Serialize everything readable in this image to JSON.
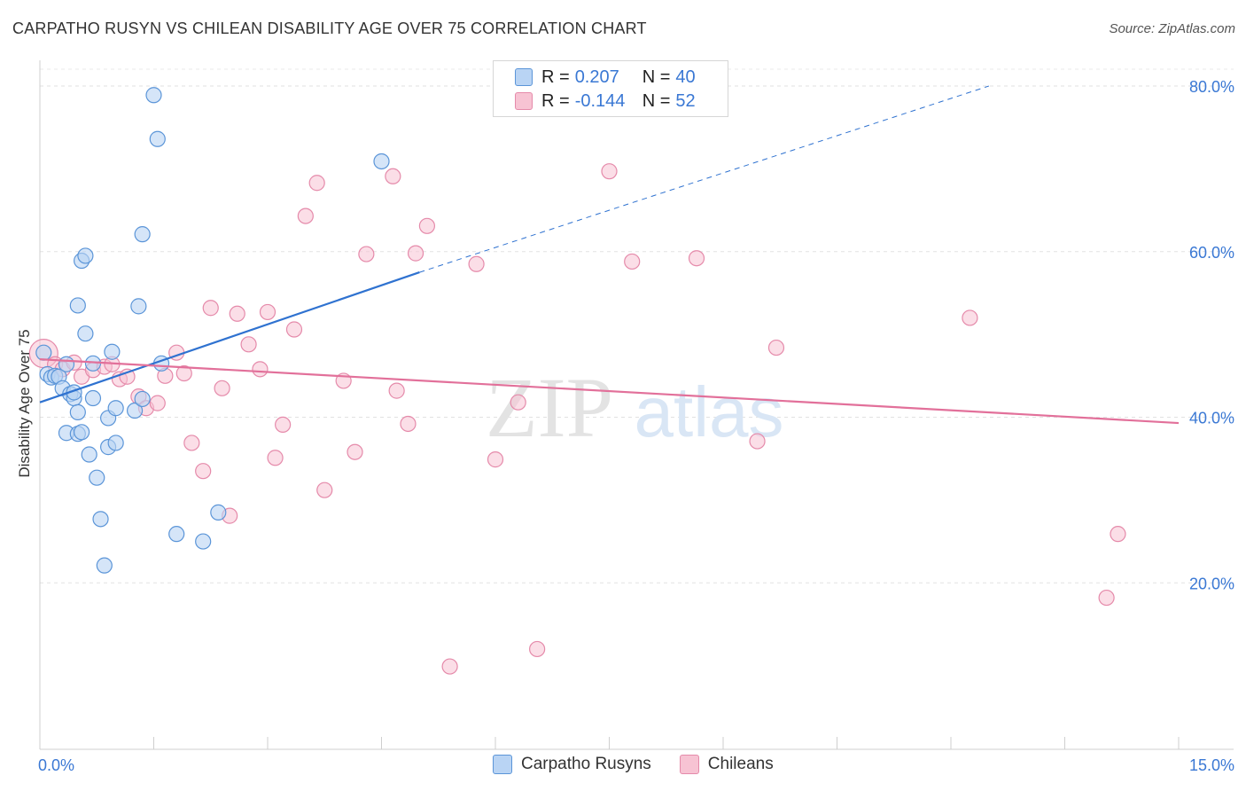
{
  "header": {
    "title": "CARPATHO RUSYN VS CHILEAN DISABILITY AGE OVER 75 CORRELATION CHART",
    "source": "Source: ZipAtlas.com"
  },
  "legend": {
    "r_label": "R =",
    "n_label": "N =",
    "series1": {
      "r": "0.207",
      "n": "40"
    },
    "series2": {
      "r": "-0.144",
      "n": "52"
    }
  },
  "bottom_legend": {
    "series1": "Carpatho Rusyns",
    "series2": "Chileans"
  },
  "watermark": {
    "zip": "ZIP",
    "atlas": "atlas"
  },
  "colors": {
    "blue_fill": "#b9d4f4",
    "blue_stroke": "#5b95d8",
    "blue_line": "#2f72d0",
    "pink_fill": "#f7c3d3",
    "pink_stroke": "#e58aaa",
    "pink_line": "#e2709a",
    "axis_label": "#3a78d4"
  },
  "chart_data": {
    "type": "scatter",
    "title": "CARPATHO RUSYN VS CHILEAN DISABILITY AGE OVER 75 CORRELATION CHART",
    "xlabel": "",
    "ylabel": "Disability Age Over 75",
    "xlim": [
      0,
      15
    ],
    "ylim": [
      0,
      82
    ],
    "x_tick_labels": [
      "0.0%",
      "15.0%"
    ],
    "y_ticks": [
      20,
      40,
      60,
      80
    ],
    "y_tick_labels": [
      "20.0%",
      "40.0%",
      "60.0%",
      "80.0%"
    ],
    "series": [
      {
        "name": "Carpatho Rusyns",
        "r": 0.207,
        "n": 40,
        "trend": {
          "x": [
            0,
            5.0
          ],
          "y": [
            41.8,
            57.5
          ],
          "dashed_to": [
            12.5,
            80.0
          ]
        },
        "points": [
          [
            0.05,
            47.8
          ],
          [
            0.1,
            45.2
          ],
          [
            0.15,
            44.8
          ],
          [
            0.2,
            45.0
          ],
          [
            0.25,
            44.9
          ],
          [
            0.3,
            43.5
          ],
          [
            0.35,
            46.4
          ],
          [
            0.35,
            38.1
          ],
          [
            0.4,
            42.8
          ],
          [
            0.45,
            42.3
          ],
          [
            0.45,
            43.0
          ],
          [
            0.5,
            38.0
          ],
          [
            0.5,
            40.6
          ],
          [
            0.55,
            38.2
          ],
          [
            0.5,
            53.5
          ],
          [
            0.55,
            58.9
          ],
          [
            0.6,
            59.5
          ],
          [
            0.6,
            50.1
          ],
          [
            0.65,
            35.5
          ],
          [
            0.7,
            46.5
          ],
          [
            0.7,
            42.3
          ],
          [
            0.75,
            32.7
          ],
          [
            0.8,
            27.7
          ],
          [
            0.85,
            22.1
          ],
          [
            0.9,
            39.9
          ],
          [
            0.9,
            36.4
          ],
          [
            0.95,
            47.9
          ],
          [
            1.0,
            36.9
          ],
          [
            1.0,
            41.1
          ],
          [
            1.25,
            40.8
          ],
          [
            1.3,
            53.4
          ],
          [
            1.35,
            42.2
          ],
          [
            1.35,
            62.1
          ],
          [
            1.5,
            78.9
          ],
          [
            1.55,
            73.6
          ],
          [
            1.6,
            46.5
          ],
          [
            1.8,
            25.9
          ],
          [
            2.15,
            25.0
          ],
          [
            2.35,
            28.5
          ],
          [
            4.5,
            70.9
          ]
        ]
      },
      {
        "name": "Chileans",
        "r": -0.144,
        "n": 52,
        "trend": {
          "x": [
            0,
            15.0
          ],
          "y": [
            47.0,
            39.3
          ]
        },
        "points": [
          [
            0.05,
            47.7
          ],
          [
            0.2,
            46.4
          ],
          [
            0.3,
            45.8
          ],
          [
            0.45,
            46.6
          ],
          [
            0.55,
            44.9
          ],
          [
            0.7,
            45.7
          ],
          [
            0.85,
            46.1
          ],
          [
            0.95,
            46.4
          ],
          [
            1.05,
            44.6
          ],
          [
            1.15,
            44.9
          ],
          [
            1.3,
            42.5
          ],
          [
            1.4,
            41.1
          ],
          [
            1.55,
            41.7
          ],
          [
            1.65,
            45.0
          ],
          [
            1.8,
            47.8
          ],
          [
            1.9,
            45.3
          ],
          [
            2.0,
            36.9
          ],
          [
            2.15,
            33.5
          ],
          [
            2.25,
            53.2
          ],
          [
            2.4,
            43.5
          ],
          [
            2.5,
            28.1
          ],
          [
            2.6,
            52.5
          ],
          [
            2.75,
            48.8
          ],
          [
            2.9,
            45.8
          ],
          [
            3.0,
            52.7
          ],
          [
            3.1,
            35.1
          ],
          [
            3.2,
            39.1
          ],
          [
            3.35,
            50.6
          ],
          [
            3.5,
            64.3
          ],
          [
            3.65,
            68.3
          ],
          [
            3.75,
            31.2
          ],
          [
            4.0,
            44.4
          ],
          [
            4.15,
            35.8
          ],
          [
            4.3,
            59.7
          ],
          [
            4.65,
            69.1
          ],
          [
            4.7,
            43.2
          ],
          [
            4.85,
            39.2
          ],
          [
            4.95,
            59.8
          ],
          [
            5.1,
            63.1
          ],
          [
            5.75,
            58.5
          ],
          [
            5.4,
            9.9
          ],
          [
            6.0,
            34.9
          ],
          [
            6.3,
            41.8
          ],
          [
            6.55,
            12.0
          ],
          [
            7.5,
            69.7
          ],
          [
            7.8,
            58.8
          ],
          [
            8.65,
            59.2
          ],
          [
            9.45,
            37.1
          ],
          [
            9.7,
            48.4
          ],
          [
            12.25,
            52.0
          ],
          [
            14.05,
            18.2
          ],
          [
            14.2,
            25.9
          ]
        ]
      }
    ]
  }
}
